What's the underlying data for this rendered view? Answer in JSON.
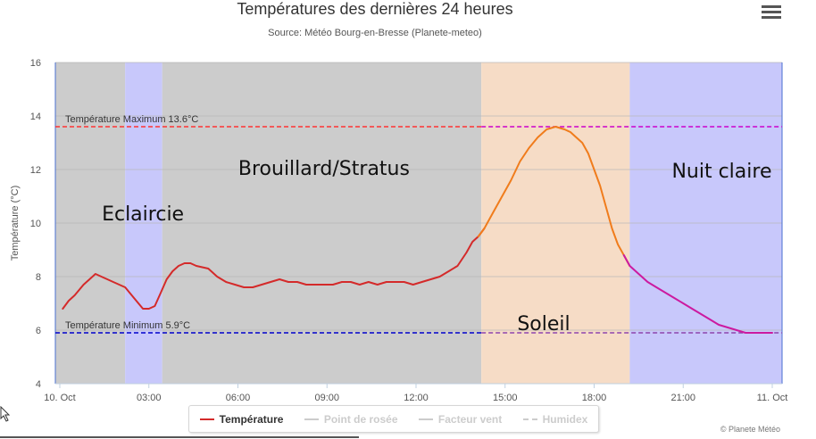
{
  "chart_data": {
    "type": "line",
    "title": "Températures des dernières 24 heures",
    "subtitle": "Source: Météo Bourg-en-Bresse (Planete-meteo)",
    "ylabel": "Température (°C)",
    "xlabel": "",
    "ylim": [
      4,
      16
    ],
    "y_ticks": [
      4,
      6,
      8,
      10,
      12,
      14,
      16
    ],
    "x_tick_labels": [
      "10. Oct",
      "03:00",
      "06:00",
      "09:00",
      "12:00",
      "15:00",
      "18:00",
      "21:00",
      "11. Oct"
    ],
    "x_range_hours": [
      0,
      24
    ],
    "grid": true,
    "legend_position": "bottom-center",
    "reference_lines": [
      {
        "label": "Température Maximum 13.6°C",
        "value": 13.6,
        "color": "#ff3333",
        "color_alt": "#cc00cc"
      },
      {
        "label": "Température Minimum 5.9°C",
        "value": 5.9,
        "color": "#0000cc",
        "color_alt": "#8e44ad"
      }
    ],
    "bands": [
      {
        "label": "",
        "from": 0.0,
        "to": 2.2,
        "color": "#cccccc"
      },
      {
        "label": "Eclaircie",
        "from": 2.2,
        "to": 3.45,
        "color": "#c8c8fb"
      },
      {
        "label": "Brouillard/Stratus",
        "from": 3.45,
        "to": 14.2,
        "color": "#cccccc"
      },
      {
        "label": "Soleil",
        "from": 14.2,
        "to": 19.2,
        "color": "#f6dcc6"
      },
      {
        "label": "Nuit claire",
        "from": 19.2,
        "to": 24.0,
        "color": "#c8c8fb"
      }
    ],
    "series": [
      {
        "name": "Température",
        "x": [
          0.1,
          0.3,
          0.5,
          0.8,
          1.0,
          1.2,
          1.4,
          1.6,
          1.8,
          2.0,
          2.2,
          2.5,
          2.8,
          3.0,
          3.2,
          3.4,
          3.6,
          3.8,
          4.0,
          4.2,
          4.4,
          4.6,
          5.0,
          5.3,
          5.6,
          5.9,
          6.2,
          6.5,
          6.8,
          7.1,
          7.4,
          7.7,
          8.0,
          8.3,
          8.6,
          8.9,
          9.2,
          9.5,
          9.8,
          10.1,
          10.4,
          10.7,
          11.0,
          11.3,
          11.6,
          11.9,
          12.2,
          12.5,
          12.8,
          13.1,
          13.4,
          13.7,
          13.9,
          14.1,
          14.3,
          14.6,
          14.9,
          15.2,
          15.5,
          15.8,
          16.1,
          16.4,
          16.7,
          17.0,
          17.2,
          17.4,
          17.6,
          17.8,
          18.0,
          18.2,
          18.4,
          18.6,
          18.8,
          19.0,
          19.2,
          19.5,
          19.8,
          20.1,
          20.4,
          20.7,
          21.0,
          21.3,
          21.6,
          21.9,
          22.2,
          22.5,
          22.8,
          23.1,
          23.4,
          23.7,
          24.0
        ],
        "y": [
          6.8,
          7.1,
          7.3,
          7.7,
          7.9,
          8.1,
          8.0,
          7.9,
          7.8,
          7.7,
          7.6,
          7.2,
          6.8,
          6.8,
          6.9,
          7.4,
          7.9,
          8.2,
          8.4,
          8.5,
          8.5,
          8.4,
          8.3,
          8.0,
          7.8,
          7.7,
          7.6,
          7.6,
          7.7,
          7.8,
          7.9,
          7.8,
          7.8,
          7.7,
          7.7,
          7.7,
          7.7,
          7.8,
          7.8,
          7.7,
          7.8,
          7.7,
          7.8,
          7.8,
          7.8,
          7.7,
          7.8,
          7.9,
          8.0,
          8.2,
          8.4,
          8.9,
          9.3,
          9.5,
          9.8,
          10.4,
          11.0,
          11.6,
          12.3,
          12.8,
          13.2,
          13.5,
          13.6,
          13.5,
          13.4,
          13.2,
          13.0,
          12.6,
          12.0,
          11.4,
          10.6,
          9.8,
          9.2,
          8.8,
          8.4,
          8.1,
          7.8,
          7.6,
          7.4,
          7.2,
          7.0,
          6.8,
          6.6,
          6.4,
          6.2,
          6.1,
          6.0,
          5.9,
          5.9,
          5.9,
          5.9
        ],
        "color_segments": [
          {
            "from": 0,
            "to": 14.2,
            "color": "#d42a2a"
          },
          {
            "from": 14.2,
            "to": 19.2,
            "color": "#f07c1c"
          },
          {
            "from": 19.2,
            "to": 24,
            "color": "#cc1aa0"
          }
        ]
      },
      {
        "name": "Point de rosée",
        "x": [],
        "y": [],
        "hidden": true
      },
      {
        "name": "Facteur vent",
        "x": [],
        "y": [],
        "hidden": true
      },
      {
        "name": "Humidex",
        "x": [],
        "y": [],
        "hidden": true
      }
    ]
  },
  "legend": {
    "items": [
      {
        "label": "Température",
        "color": "#d42a2a",
        "style": "solid",
        "active": true
      },
      {
        "label": "Point de rosée",
        "color": "#cccccc",
        "style": "solid",
        "active": false
      },
      {
        "label": "Facteur vent",
        "color": "#cccccc",
        "style": "solid",
        "active": false
      },
      {
        "label": "Humidex",
        "color": "#cccccc",
        "style": "dashed",
        "active": false
      }
    ]
  },
  "credit": "© Planete Météo",
  "menu_icon": "hamburger-menu-icon"
}
